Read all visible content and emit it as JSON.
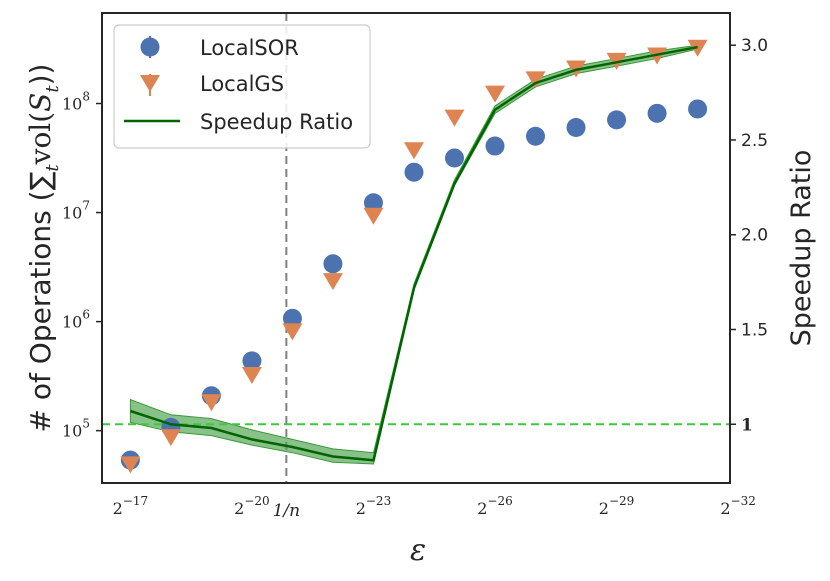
{
  "chart_data": {
    "type": "scatter",
    "title": "",
    "xlabel": "ε",
    "ylabel_left": "# of Operations (∑",
    "ylabel_left_sub": "t",
    "ylabel_left_vol": "vol(",
    "ylabel_left_set": "S",
    "ylabel_left_close": "))",
    "ylabel_right": "Speedup Ratio",
    "x_scale": "log2 (reversed): position k means ε = 2^-k",
    "x": [
      17,
      18,
      19,
      20,
      21,
      22,
      23,
      24,
      25,
      26,
      27,
      28,
      29,
      30,
      31
    ],
    "xlim": [
      16.3,
      31.8
    ],
    "x_ticks": [
      {
        "base": "2",
        "exp": "−17",
        "pos": 17
      },
      {
        "base": "2",
        "exp": "−20",
        "pos": 20
      },
      {
        "base": "2",
        "exp": "−23",
        "pos": 23
      },
      {
        "base": "2",
        "exp": "−26",
        "pos": 26
      },
      {
        "base": "2",
        "exp": "−29",
        "pos": 29
      },
      {
        "base": "2",
        "exp": "−32",
        "pos": 32
      }
    ],
    "x_marker": {
      "label": "1/n",
      "pos": 20.85
    },
    "ylim_left": [
      4.52,
      8.83
    ],
    "y_ticks_left": [
      {
        "base": "10",
        "exp": "5",
        "log": 5
      },
      {
        "base": "10",
        "exp": "6",
        "log": 6
      },
      {
        "base": "10",
        "exp": "7",
        "log": 7
      },
      {
        "base": "10",
        "exp": "8",
        "log": 8
      }
    ],
    "ylim_right": [
      0.69,
      3.17
    ],
    "y_ticks_right": [
      {
        "label": "1",
        "value": 1.0,
        "bold": true
      },
      {
        "label": "1.5",
        "value": 1.5
      },
      {
        "label": "2.0",
        "value": 2.0
      },
      {
        "label": "2.5",
        "value": 2.5
      },
      {
        "label": "3.0",
        "value": 3.0
      }
    ],
    "reference_line": {
      "value": 1.0,
      "axis": "right",
      "color": "#3cc83c"
    },
    "series": [
      {
        "name": "LocalSOR",
        "marker": "circle",
        "color": "#4c72b0",
        "axis": "left",
        "log10_values": [
          4.73,
          5.03,
          5.32,
          5.64,
          6.03,
          6.53,
          7.09,
          7.37,
          7.5,
          7.61,
          7.7,
          7.78,
          7.85,
          7.91,
          7.95
        ]
      },
      {
        "name": "LocalGS",
        "marker": "triangle-down",
        "color": "#dd8452",
        "axis": "left",
        "log10_values": [
          4.7,
          4.95,
          5.27,
          5.52,
          5.92,
          6.38,
          6.98,
          7.58,
          7.88,
          8.1,
          8.23,
          8.33,
          8.4,
          8.45,
          8.52
        ]
      },
      {
        "name": "Speedup Ratio",
        "marker": "line",
        "color": "#006400",
        "band_color": "#3a9a3a",
        "axis": "right",
        "values": [
          1.07,
          1.0,
          0.98,
          0.92,
          0.88,
          0.83,
          0.81,
          1.72,
          2.27,
          2.66,
          2.8,
          2.87,
          2.91,
          2.95,
          2.99
        ],
        "band_lower": [
          1.01,
          0.96,
          0.94,
          0.89,
          0.85,
          0.8,
          0.79,
          1.71,
          2.26,
          2.64,
          2.78,
          2.85,
          2.89,
          2.93,
          2.98
        ],
        "band_upper": [
          1.13,
          1.05,
          1.03,
          0.97,
          0.92,
          0.87,
          0.85,
          1.74,
          2.29,
          2.68,
          2.82,
          2.89,
          2.93,
          2.97,
          3.0
        ]
      }
    ],
    "legend": {
      "position": "top-left"
    }
  }
}
